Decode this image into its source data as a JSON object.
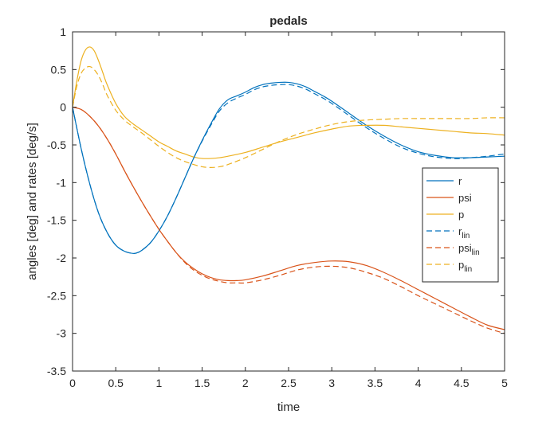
{
  "chart_data": {
    "type": "line",
    "title": "pedals",
    "xlabel": "time",
    "ylabel": "angles [deg] and rates [deg/s]",
    "xlim": [
      0,
      5
    ],
    "ylim": [
      -3.5,
      1
    ],
    "x_ticks": [
      0,
      0.5,
      1,
      1.5,
      2,
      2.5,
      3,
      3.5,
      4,
      4.5,
      5
    ],
    "y_ticks": [
      -3.5,
      -3,
      -2.5,
      -2,
      -1.5,
      -1,
      -0.5,
      0,
      0.5,
      1
    ],
    "x_tick_labels": [
      "0",
      "0.5",
      "1",
      "1.5",
      "2",
      "2.5",
      "3",
      "3.5",
      "4",
      "4.5",
      "5"
    ],
    "y_tick_labels": [
      "-3.5",
      "-3",
      "-2.5",
      "-2",
      "-1.5",
      "-1",
      "-0.5",
      "0",
      "0.5",
      "1"
    ],
    "grid": false,
    "legend_position": "right",
    "series": [
      {
        "name": "r",
        "label_main": "r",
        "label_sub": "",
        "color": "#0072BD",
        "dash": "solid",
        "x": [
          0,
          0.1,
          0.2,
          0.3,
          0.4,
          0.5,
          0.6,
          0.7,
          0.75,
          0.8,
          0.9,
          1.0,
          1.1,
          1.2,
          1.3,
          1.4,
          1.5,
          1.6,
          1.7,
          1.8,
          1.9,
          2.0,
          2.1,
          2.2,
          2.3,
          2.4,
          2.5,
          2.6,
          2.7,
          2.8,
          2.9,
          3.0,
          3.2,
          3.4,
          3.6,
          3.8,
          4.0,
          4.2,
          4.4,
          4.5,
          4.6,
          4.8,
          5.0
        ],
        "y": [
          0,
          -0.55,
          -1.02,
          -1.4,
          -1.66,
          -1.83,
          -1.91,
          -1.94,
          -1.93,
          -1.9,
          -1.8,
          -1.64,
          -1.44,
          -1.2,
          -0.94,
          -0.68,
          -0.44,
          -0.22,
          -0.02,
          0.1,
          0.15,
          0.2,
          0.26,
          0.3,
          0.32,
          0.33,
          0.33,
          0.31,
          0.27,
          0.21,
          0.15,
          0.08,
          -0.08,
          -0.24,
          -0.38,
          -0.5,
          -0.59,
          -0.64,
          -0.67,
          -0.67,
          -0.67,
          -0.66,
          -0.65
        ]
      },
      {
        "name": "psi",
        "label_main": "psi",
        "label_sub": "",
        "color": "#D95319",
        "dash": "solid",
        "x": [
          0,
          0.1,
          0.2,
          0.3,
          0.4,
          0.5,
          0.6,
          0.7,
          0.8,
          0.9,
          1.0,
          1.1,
          1.2,
          1.3,
          1.4,
          1.5,
          1.6,
          1.7,
          1.8,
          1.9,
          2.0,
          2.2,
          2.4,
          2.6,
          2.8,
          3.0,
          3.2,
          3.4,
          3.6,
          3.8,
          4.0,
          4.2,
          4.4,
          4.6,
          4.8,
          5.0
        ],
        "y": [
          0,
          -0.03,
          -0.12,
          -0.25,
          -0.42,
          -0.62,
          -0.84,
          -1.05,
          -1.25,
          -1.44,
          -1.62,
          -1.78,
          -1.93,
          -2.05,
          -2.14,
          -2.21,
          -2.26,
          -2.29,
          -2.3,
          -2.3,
          -2.29,
          -2.24,
          -2.17,
          -2.1,
          -2.06,
          -2.04,
          -2.05,
          -2.1,
          -2.19,
          -2.3,
          -2.42,
          -2.54,
          -2.66,
          -2.78,
          -2.89,
          -2.95
        ]
      },
      {
        "name": "p",
        "label_main": "p",
        "label_sub": "",
        "color": "#EDB120",
        "dash": "solid",
        "x": [
          0,
          0.05,
          0.1,
          0.15,
          0.2,
          0.25,
          0.3,
          0.35,
          0.4,
          0.5,
          0.6,
          0.7,
          0.8,
          0.9,
          1.0,
          1.1,
          1.2,
          1.3,
          1.4,
          1.5,
          1.6,
          1.7,
          1.8,
          2.0,
          2.2,
          2.4,
          2.6,
          2.8,
          3.0,
          3.2,
          3.4,
          3.6,
          3.8,
          4.0,
          4.2,
          4.4,
          4.6,
          4.8,
          5.0
        ],
        "y": [
          0,
          0.35,
          0.62,
          0.76,
          0.8,
          0.75,
          0.62,
          0.46,
          0.3,
          0.05,
          -0.12,
          -0.22,
          -0.3,
          -0.38,
          -0.46,
          -0.52,
          -0.58,
          -0.62,
          -0.66,
          -0.68,
          -0.68,
          -0.67,
          -0.65,
          -0.6,
          -0.53,
          -0.46,
          -0.4,
          -0.34,
          -0.29,
          -0.25,
          -0.24,
          -0.24,
          -0.26,
          -0.28,
          -0.3,
          -0.32,
          -0.34,
          -0.35,
          -0.37
        ]
      },
      {
        "name": "r_lin",
        "label_main": "r",
        "label_sub": "lin",
        "color": "#0072BD",
        "dash": "dashed",
        "x": [
          0,
          0.1,
          0.2,
          0.3,
          0.4,
          0.5,
          0.6,
          0.7,
          0.75,
          0.8,
          0.9,
          1.0,
          1.1,
          1.2,
          1.3,
          1.4,
          1.5,
          1.6,
          1.7,
          1.8,
          1.9,
          2.0,
          2.1,
          2.2,
          2.3,
          2.4,
          2.5,
          2.6,
          2.7,
          2.8,
          2.9,
          3.0,
          3.2,
          3.4,
          3.6,
          3.8,
          4.0,
          4.2,
          4.4,
          4.5,
          4.6,
          4.8,
          5.0
        ],
        "y": [
          0,
          -0.55,
          -1.02,
          -1.4,
          -1.66,
          -1.83,
          -1.91,
          -1.94,
          -1.93,
          -1.9,
          -1.8,
          -1.64,
          -1.44,
          -1.2,
          -0.94,
          -0.68,
          -0.45,
          -0.24,
          -0.05,
          0.06,
          0.12,
          0.17,
          0.23,
          0.27,
          0.29,
          0.3,
          0.3,
          0.28,
          0.24,
          0.18,
          0.12,
          0.05,
          -0.11,
          -0.27,
          -0.41,
          -0.53,
          -0.61,
          -0.66,
          -0.68,
          -0.68,
          -0.67,
          -0.65,
          -0.62
        ]
      },
      {
        "name": "psi_lin",
        "label_main": "psi",
        "label_sub": "lin",
        "color": "#D95319",
        "dash": "dashed",
        "x": [
          0,
          0.1,
          0.2,
          0.3,
          0.4,
          0.5,
          0.6,
          0.7,
          0.8,
          0.9,
          1.0,
          1.1,
          1.2,
          1.3,
          1.4,
          1.5,
          1.6,
          1.7,
          1.8,
          1.9,
          2.0,
          2.2,
          2.4,
          2.6,
          2.8,
          3.0,
          3.2,
          3.4,
          3.6,
          3.8,
          4.0,
          4.2,
          4.4,
          4.6,
          4.8,
          5.0
        ],
        "y": [
          0,
          -0.03,
          -0.12,
          -0.25,
          -0.42,
          -0.62,
          -0.84,
          -1.05,
          -1.25,
          -1.44,
          -1.62,
          -1.78,
          -1.93,
          -2.06,
          -2.16,
          -2.23,
          -2.28,
          -2.31,
          -2.33,
          -2.33,
          -2.33,
          -2.29,
          -2.23,
          -2.16,
          -2.12,
          -2.11,
          -2.13,
          -2.19,
          -2.27,
          -2.38,
          -2.5,
          -2.61,
          -2.72,
          -2.83,
          -2.93,
          -3.0
        ]
      },
      {
        "name": "p_lin",
        "label_main": "p",
        "label_sub": "lin",
        "color": "#EDB120",
        "dash": "dashed",
        "x": [
          0,
          0.05,
          0.1,
          0.15,
          0.2,
          0.25,
          0.3,
          0.35,
          0.4,
          0.5,
          0.6,
          0.7,
          0.8,
          0.9,
          1.0,
          1.1,
          1.2,
          1.3,
          1.4,
          1.5,
          1.6,
          1.7,
          1.8,
          2.0,
          2.2,
          2.4,
          2.6,
          2.8,
          3.0,
          3.2,
          3.4,
          3.6,
          3.8,
          4.0,
          4.2,
          4.4,
          4.6,
          4.8,
          5.0
        ],
        "y": [
          0,
          0.28,
          0.45,
          0.52,
          0.54,
          0.5,
          0.42,
          0.3,
          0.16,
          -0.04,
          -0.17,
          -0.26,
          -0.34,
          -0.43,
          -0.52,
          -0.6,
          -0.67,
          -0.72,
          -0.76,
          -0.79,
          -0.8,
          -0.79,
          -0.76,
          -0.67,
          -0.56,
          -0.45,
          -0.36,
          -0.29,
          -0.23,
          -0.19,
          -0.17,
          -0.16,
          -0.15,
          -0.15,
          -0.15,
          -0.15,
          -0.15,
          -0.14,
          -0.14
        ]
      }
    ]
  }
}
